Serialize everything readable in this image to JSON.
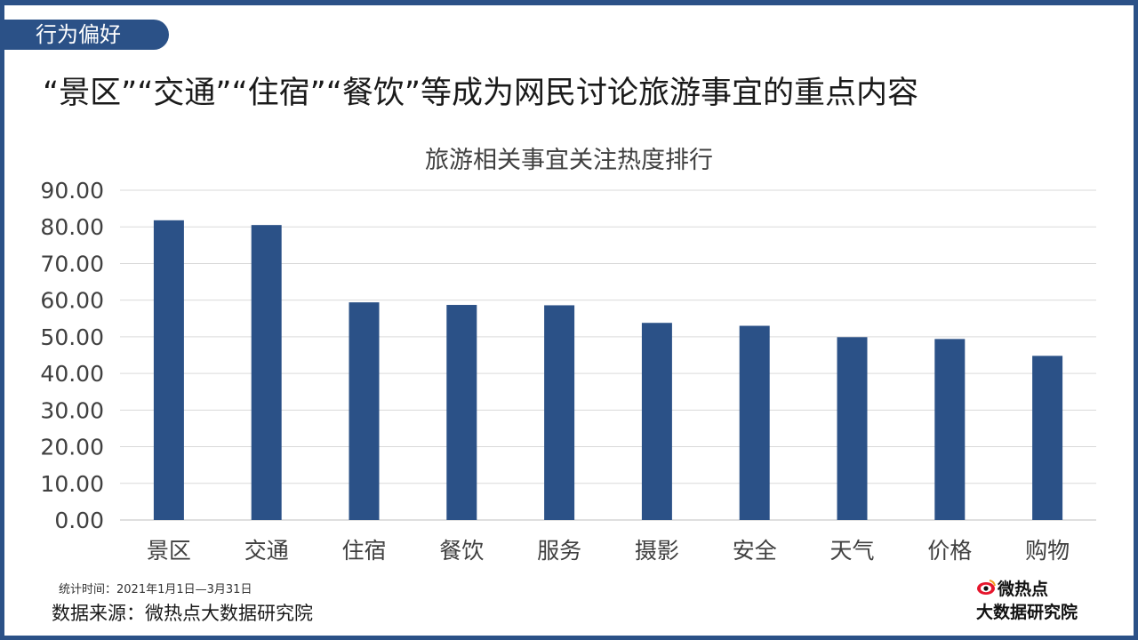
{
  "section_tag": "行为偏好",
  "headline": "“景区”“交通”“住宿”“餐饮”等成为网民讨论旅游事宜的重点内容",
  "footnote": {
    "period": "统计时间：2021年1月1日—3月31日",
    "source": "数据来源：微热点大数据研究院"
  },
  "logo": {
    "top_text": "微热点",
    "bottom_text": "大数据研究院",
    "icon": "weibo-eye-icon"
  },
  "colors": {
    "frame": "#2b5187",
    "bar": "#2b5187",
    "grid": "#d9d9d9",
    "logo_accent": "#e6162d"
  },
  "chart_data": {
    "type": "bar",
    "title": "旅游相关事宜关注热度排行",
    "categories": [
      "景区",
      "交通",
      "住宿",
      "餐饮",
      "服务",
      "摄影",
      "安全",
      "天气",
      "价格",
      "购物"
    ],
    "values": [
      81.8,
      80.5,
      59.4,
      58.7,
      58.6,
      53.8,
      53.0,
      49.9,
      49.4,
      44.8
    ],
    "ylim": [
      0,
      90
    ],
    "yticks": [
      0,
      10,
      20,
      30,
      40,
      50,
      60,
      70,
      80,
      90
    ],
    "ytick_labels": [
      "0.00",
      "10.00",
      "20.00",
      "30.00",
      "40.00",
      "50.00",
      "60.00",
      "70.00",
      "80.00",
      "90.00"
    ],
    "grid": true,
    "legend": "none",
    "xlabel": "",
    "ylabel": ""
  }
}
